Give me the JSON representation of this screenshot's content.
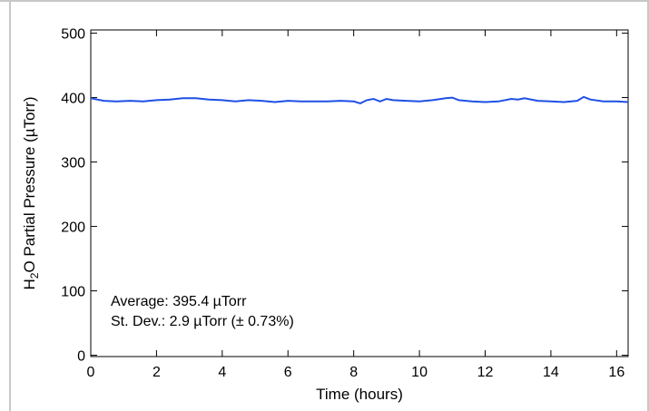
{
  "chart_data": {
    "type": "line",
    "xlabel": "Time (hours)",
    "ylabel": {
      "prefix": "H",
      "sub": "2",
      "suffix": "O Partial Pressure (µTorr)"
    },
    "xlim": [
      0,
      16.35
    ],
    "ylim": [
      -2,
      505
    ],
    "x_ticks": [
      0,
      2,
      4,
      6,
      8,
      10,
      12,
      14,
      16
    ],
    "y_ticks": [
      0,
      100,
      200,
      300,
      400,
      500
    ],
    "grid": false,
    "line_color": "#1f4fe6",
    "series": [
      {
        "x": [
          0,
          0.4,
          0.8,
          1.2,
          1.6,
          2.0,
          2.4,
          2.8,
          3.2,
          3.6,
          4.0,
          4.4,
          4.8,
          5.2,
          5.6,
          6.0,
          6.4,
          6.8,
          7.2,
          7.6,
          8.0,
          8.2,
          8.4,
          8.6,
          8.8,
          9.0,
          9.2,
          9.6,
          10.0,
          10.4,
          10.8,
          11.0,
          11.2,
          11.6,
          12.0,
          12.4,
          12.8,
          13.0,
          13.2,
          13.6,
          14.0,
          14.4,
          14.8,
          15.0,
          15.2,
          15.6,
          16.0,
          16.35
        ],
        "y": [
          399,
          395,
          394,
          395,
          394,
          396,
          397,
          399,
          399,
          397,
          396,
          394,
          396,
          395,
          393,
          395,
          394,
          394,
          394,
          395,
          394,
          391,
          396,
          398,
          394,
          398,
          396,
          395,
          394,
          396,
          399,
          400,
          396,
          394,
          393,
          394,
          398,
          397,
          399,
          395,
          394,
          393,
          395,
          401,
          397,
          394,
          394,
          393
        ]
      }
    ],
    "annotations": [
      "Average: 395.4 µTorr",
      "St. Dev.: 2.9 µTorr (± 0.73%)"
    ]
  }
}
